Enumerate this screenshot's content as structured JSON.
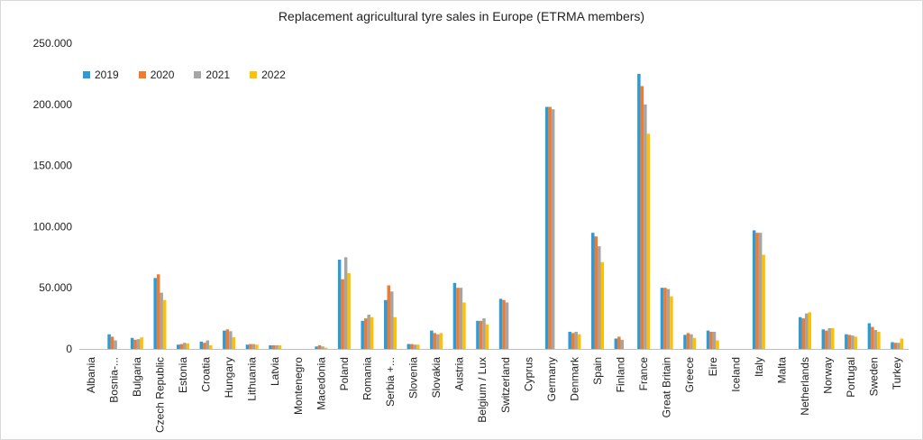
{
  "chart_data": {
    "type": "bar",
    "title": "Replacement agricultural tyre sales in Europe (ETRMA members)",
    "xlabel": "",
    "ylabel": "",
    "ylim": [
      0,
      250000
    ],
    "y_ticks": [
      "0",
      "50.000",
      "100.000",
      "150.000",
      "200.000",
      "250.000"
    ],
    "grid": false,
    "legend_position": "top-left",
    "categories": [
      "Albania",
      "Bosnia-...",
      "Bulgaria",
      "Czech Republic",
      "Estonia",
      "Croatia",
      "Hungary",
      "Lithuania",
      "Latvia",
      "Montenegro",
      "Macedonia",
      "Poland",
      "Romania",
      "Serbia +...",
      "Slovenia",
      "Slovakia",
      "Austria",
      "Belgium / Lux",
      "Switzerland",
      "Cyprus",
      "Germany",
      "Denmark",
      "Spain",
      "Finland",
      "France",
      "Great Britain",
      "Greece",
      "Eire",
      "Iceland",
      "Italy",
      "Malta",
      "Netherlands",
      "Norway",
      "Portugal",
      "Sweden",
      "Turkey"
    ],
    "series": [
      {
        "name": "2019",
        "color": "#2E9BD6",
        "values": [
          0,
          12000,
          9000,
          58000,
          3500,
          6000,
          15000,
          3500,
          3000,
          0,
          2000,
          73000,
          23000,
          40000,
          4000,
          15000,
          54000,
          23000,
          41000,
          0,
          198000,
          14000,
          95000,
          8500,
          225000,
          50000,
          11500,
          15000,
          0,
          97000,
          0,
          26000,
          16000,
          12000,
          21000,
          5500
        ]
      },
      {
        "name": "2020",
        "color": "#F07B2E",
        "values": [
          0,
          10000,
          7500,
          61000,
          4000,
          5000,
          16000,
          4000,
          3000,
          0,
          3000,
          57000,
          25000,
          52000,
          4000,
          13000,
          50000,
          23000,
          40000,
          0,
          198000,
          13000,
          92000,
          10000,
          215000,
          50000,
          13000,
          14000,
          0,
          95000,
          0,
          25000,
          15000,
          11500,
          18000,
          5000
        ]
      },
      {
        "name": "2021",
        "color": "#A5A5A5",
        "values": [
          0,
          7000,
          8000,
          46000,
          5000,
          7000,
          14500,
          4000,
          3000,
          0,
          2000,
          75000,
          28000,
          47000,
          3500,
          12000,
          50000,
          25000,
          38000,
          0,
          196000,
          14000,
          84000,
          7500,
          200000,
          49000,
          12000,
          14000,
          0,
          95000,
          0,
          29000,
          17000,
          11000,
          15500,
          5000
        ]
      },
      {
        "name": "2022",
        "color": "#FFC000",
        "values": [
          0,
          0,
          9500,
          40000,
          4500,
          3000,
          9500,
          3500,
          3000,
          0,
          1000,
          62000,
          26000,
          26000,
          3500,
          13000,
          38000,
          20000,
          0,
          0,
          0,
          12000,
          71000,
          0,
          176000,
          43000,
          9000,
          7000,
          0,
          77000,
          0,
          30000,
          17000,
          10000,
          14000,
          8500
        ]
      }
    ]
  }
}
